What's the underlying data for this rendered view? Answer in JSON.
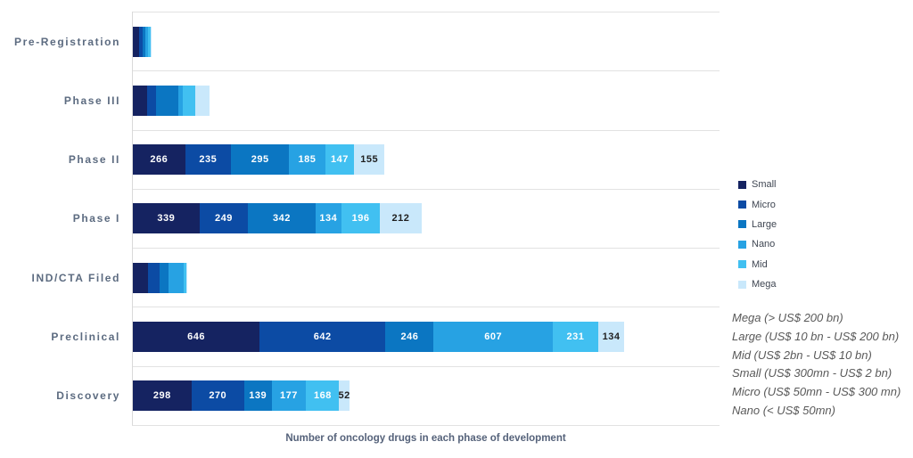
{
  "chart_data": {
    "type": "bar",
    "orientation": "horizontal-stacked",
    "title": "",
    "xlabel": "Number of oncology drugs in each phase of development",
    "xlim": [
      0,
      3000
    ],
    "grid": "category-separator-lines",
    "legend_position": "right",
    "background": "#ffffff",
    "gridline_color": "#e2e2e2",
    "category_label_color": "#5c6b80",
    "axis_title_color": "#55627a",
    "legend_text_color": "#3f4652",
    "annotation_text_color": "#595959",
    "categories": [
      "Pre-Registration",
      "Phase III",
      "Phase II",
      "Phase I",
      "IND/CTA Filed",
      "Preclinical",
      "Discovery"
    ],
    "series": [
      {
        "name": "Small",
        "color": "#152361",
        "label_text_color": "#ffffff",
        "values": [
          32,
          72,
          266,
          339,
          78,
          646,
          298
        ]
      },
      {
        "name": "Micro",
        "color": "#0c4ba4",
        "label_text_color": "#ffffff",
        "values": [
          18,
          46,
          235,
          249,
          58,
          642,
          270
        ]
      },
      {
        "name": "Large",
        "color": "#0b76c2",
        "label_text_color": "#ffffff",
        "values": [
          14,
          115,
          295,
          342,
          45,
          246,
          139
        ]
      },
      {
        "name": "Nano",
        "color": "#27a2e3",
        "label_text_color": "#ffffff",
        "values": [
          15,
          22,
          185,
          134,
          78,
          607,
          177
        ]
      },
      {
        "name": "Mid",
        "color": "#41c0f1",
        "label_text_color": "#ffffff",
        "values": [
          10,
          64,
          147,
          196,
          12,
          231,
          168
        ]
      },
      {
        "name": "Mega",
        "color": "#c9e8fb",
        "label_text_color": "#1f1f1f",
        "values": [
          8,
          72,
          155,
          212,
          5,
          134,
          52
        ]
      }
    ],
    "data_labels_shown_for": [
      "Phase II",
      "Phase I",
      "Preclinical",
      "Discovery"
    ],
    "legend": [
      "Small",
      "Micro",
      "Large",
      "Nano",
      "Mid",
      "Mega"
    ],
    "annotations": [
      "Mega (> US$ 200 bn)",
      "Large (US$ 10 bn - US$ 200 bn)",
      "Mid (US$ 2bn - US$ 10 bn)",
      "Small (US$ 300mn - US$ 2 bn)",
      "Micro (US$ 50mn - US$ 300 mn)",
      "Nano (< US$ 50mn)"
    ]
  }
}
